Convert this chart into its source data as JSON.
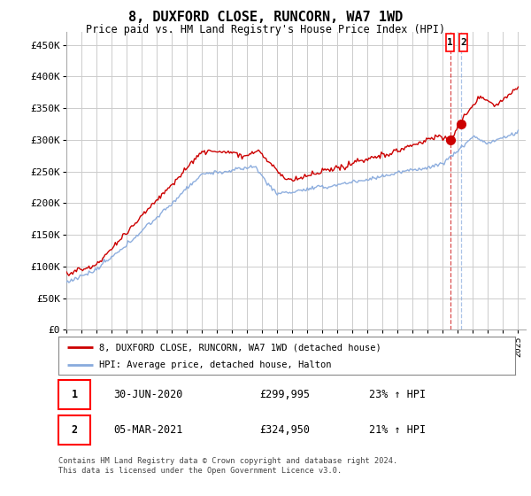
{
  "title": "8, DUXFORD CLOSE, RUNCORN, WA7 1WD",
  "subtitle": "Price paid vs. HM Land Registry's House Price Index (HPI)",
  "ylabel_ticks": [
    "£0",
    "£50K",
    "£100K",
    "£150K",
    "£200K",
    "£250K",
    "£300K",
    "£350K",
    "£400K",
    "£450K"
  ],
  "ytick_values": [
    0,
    50000,
    100000,
    150000,
    200000,
    250000,
    300000,
    350000,
    400000,
    450000
  ],
  "ylim": [
    0,
    470000
  ],
  "xlim_start": 1995.0,
  "xlim_end": 2025.5,
  "line1_color": "#cc0000",
  "line2_color": "#88aadd",
  "legend_line1": "8, DUXFORD CLOSE, RUNCORN, WA7 1WD (detached house)",
  "legend_line2": "HPI: Average price, detached house, Halton",
  "footer": "Contains HM Land Registry data © Crown copyright and database right 2024.\nThis data is licensed under the Open Government Licence v3.0.",
  "grid_color": "#cccccc",
  "background_color": "#ffffff",
  "sale1_x": 2020.5,
  "sale1_y": 299995,
  "sale2_x": 2021.2,
  "sale2_y": 324950,
  "ann1_date": "30-JUN-2020",
  "ann1_price": "£299,995",
  "ann1_hpi": "23% ↑ HPI",
  "ann2_date": "05-MAR-2021",
  "ann2_price": "£324,950",
  "ann2_hpi": "21% ↑ HPI"
}
